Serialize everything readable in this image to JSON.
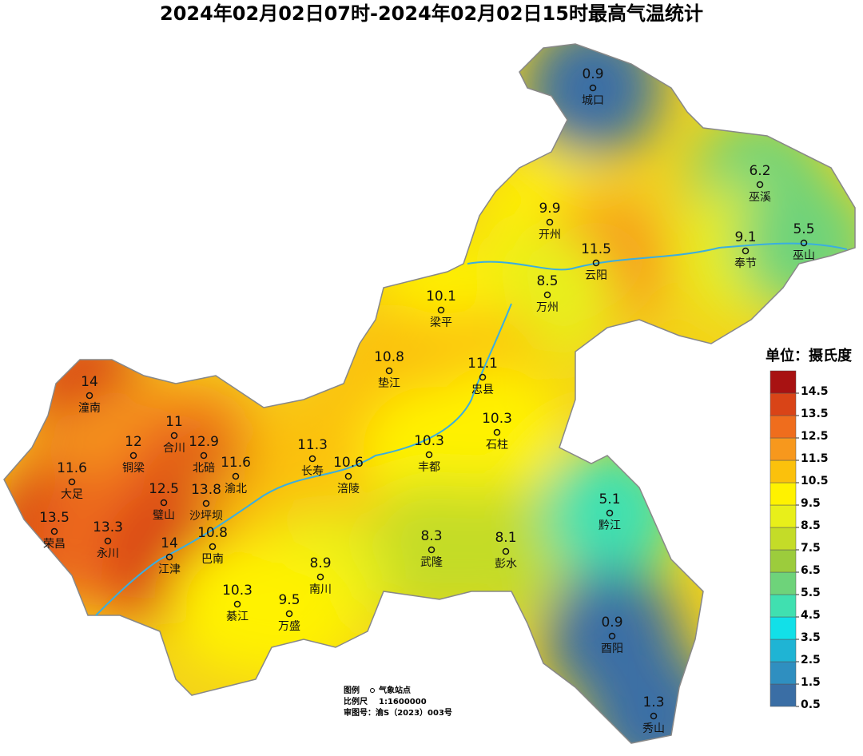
{
  "title": "2024年02月02日07时-2024年02月02日15时最高气温统计",
  "stations": [
    {
      "name": "城口",
      "value": 0.9
    },
    {
      "name": "巫溪",
      "value": 6.2
    },
    {
      "name": "开州",
      "value": 9.9
    },
    {
      "name": "云阳",
      "value": 11.5
    },
    {
      "name": "奉节",
      "value": 9.1
    },
    {
      "name": "巫山",
      "value": 5.5
    },
    {
      "name": "万州",
      "value": 8.5
    },
    {
      "name": "梁平",
      "value": 10.1
    },
    {
      "name": "垫江",
      "value": 10.8
    },
    {
      "name": "忠县",
      "value": 11.1
    },
    {
      "name": "石柱",
      "value": 10.3
    },
    {
      "name": "潼南",
      "value": 14
    },
    {
      "name": "合川",
      "value": 11
    },
    {
      "name": "铜梁",
      "value": 12
    },
    {
      "name": "北碚",
      "value": 12.9
    },
    {
      "name": "渝北",
      "value": 11.6
    },
    {
      "name": "大足",
      "value": 11.6
    },
    {
      "name": "璧山",
      "value": 12.5
    },
    {
      "name": "沙坪坝",
      "value": 13.8
    },
    {
      "name": "长寿",
      "value": 11.3
    },
    {
      "name": "涪陵",
      "value": 10.6
    },
    {
      "name": "丰都",
      "value": 10.3
    },
    {
      "name": "荣昌",
      "value": 13.5
    },
    {
      "name": "永川",
      "value": 13.3
    },
    {
      "name": "巴南",
      "value": 10.8
    },
    {
      "name": "江津",
      "value": 14
    },
    {
      "name": "武隆",
      "value": 8.3
    },
    {
      "name": "彭水",
      "value": 8.1
    },
    {
      "name": "黔江",
      "value": 5.1
    },
    {
      "name": "南川",
      "value": 8.9
    },
    {
      "name": "綦江",
      "value": 10.3
    },
    {
      "name": "万盛",
      "value": 9.5
    },
    {
      "name": "酉阳",
      "value": 0.9
    },
    {
      "name": "秀山",
      "value": 1.3
    }
  ],
  "legend": {
    "unit": "单位：摄氏度",
    "ticks": [
      0.5,
      1.5,
      2.5,
      3.5,
      4.5,
      5.5,
      6.5,
      7.5,
      8.5,
      9.5,
      10.5,
      11.5,
      12.5,
      13.5,
      14.5
    ],
    "colors": [
      "#3a6ea5",
      "#2f8fc0",
      "#1fb4d4",
      "#12e0e8",
      "#40e0b0",
      "#6ed37a",
      "#9ccc3c",
      "#c4dc28",
      "#e8ef1a",
      "#fff200",
      "#fbc10c",
      "#f7981d",
      "#ef6d1d",
      "#d94417",
      "#a81212"
    ]
  },
  "footnote": {
    "symbol_label": "图例",
    "symbol_text": "气象站点",
    "scale_label": "比例尺",
    "scale": "1:1600000",
    "review_no": "审图号：渝S（2023）003号"
  }
}
